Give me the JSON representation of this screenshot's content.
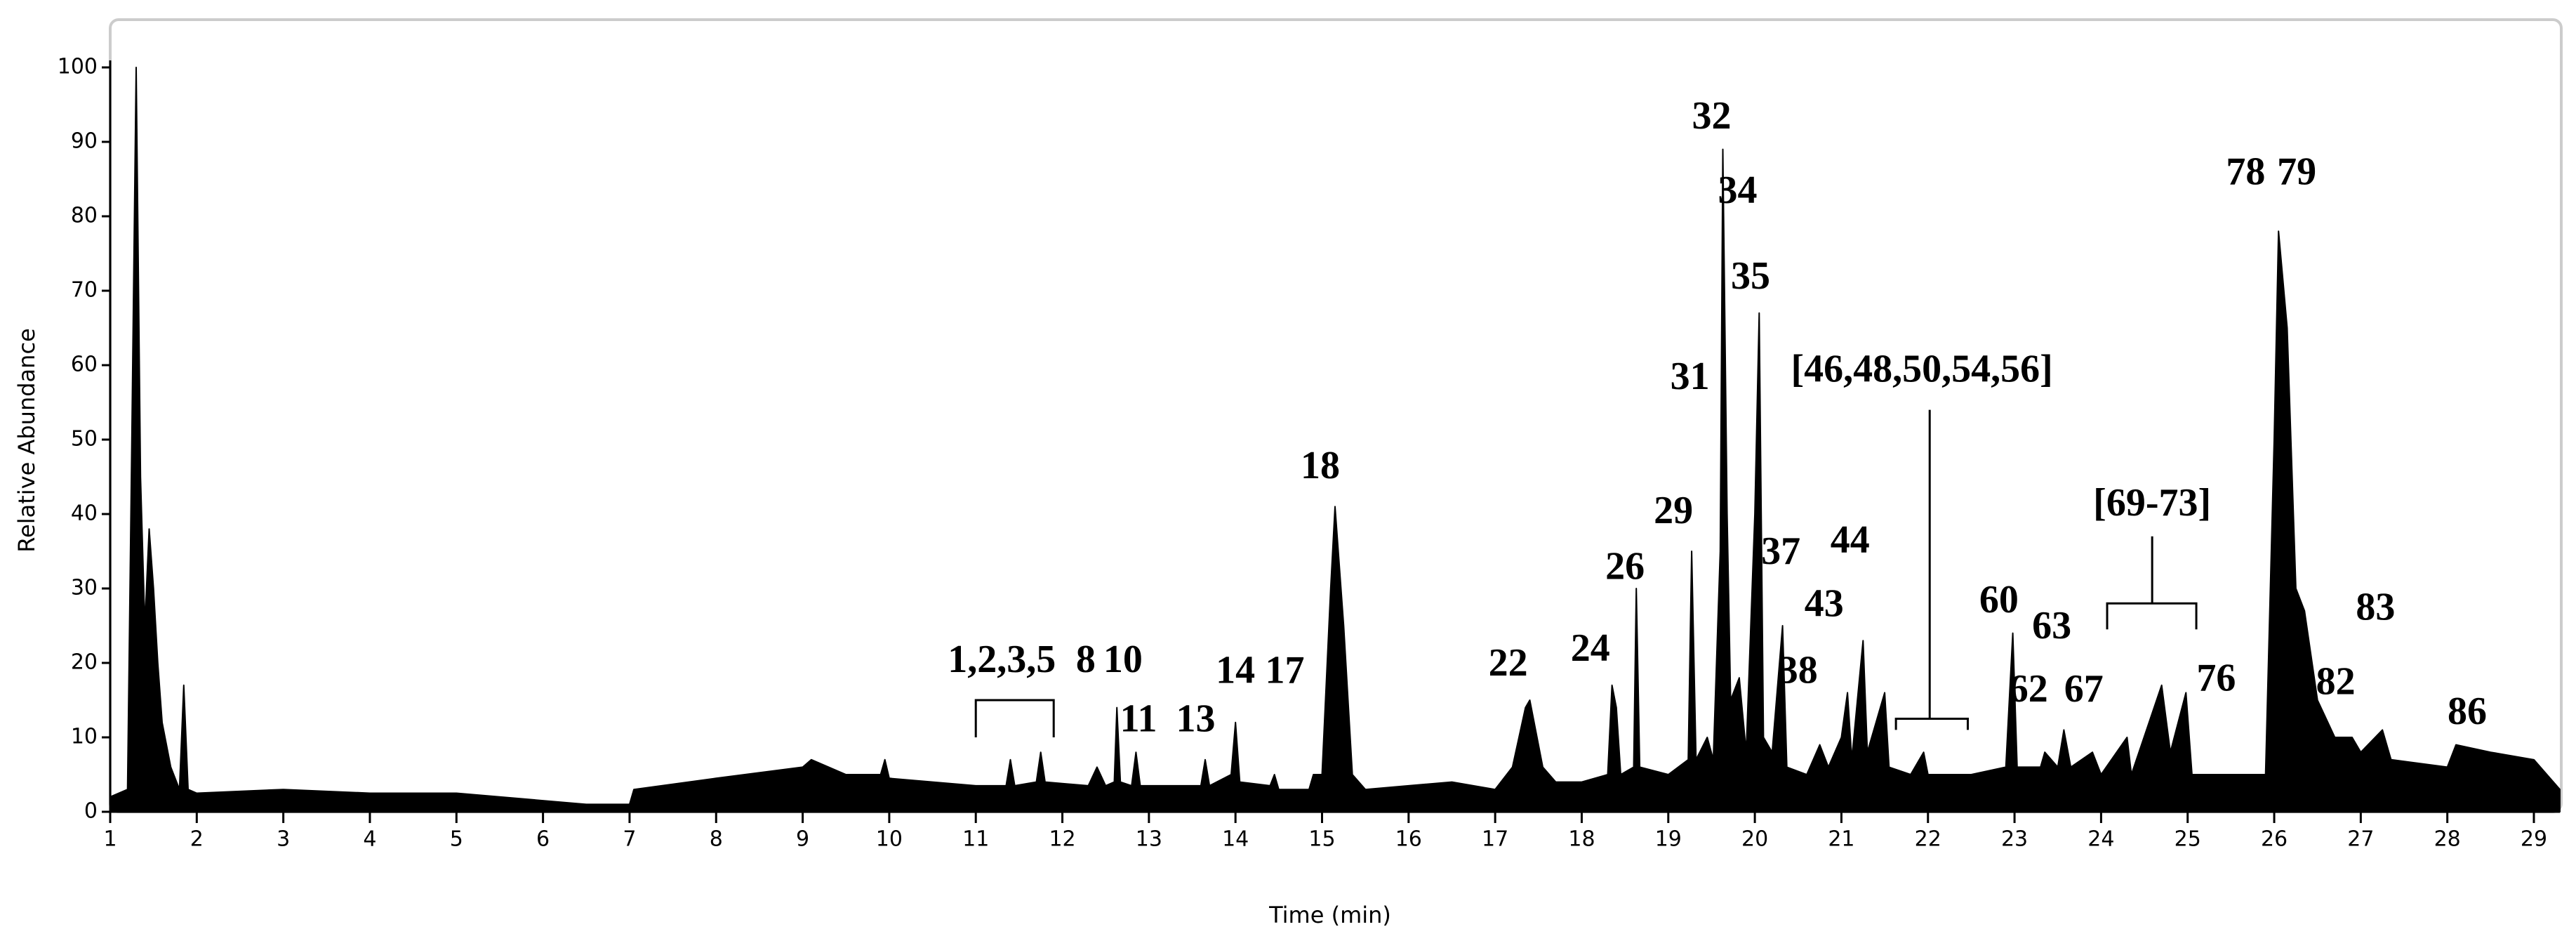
{
  "chart_data": {
    "type": "area",
    "xlabel": "Time (min)",
    "ylabel": "Relative Abundance",
    "color": "#000000",
    "xlim": [
      1,
      29.3
    ],
    "ylim": [
      0,
      100
    ],
    "xticks": [
      1,
      2,
      3,
      4,
      5,
      6,
      7,
      8,
      9,
      10,
      11,
      12,
      13,
      14,
      15,
      16,
      17,
      18,
      19,
      20,
      21,
      22,
      23,
      24,
      25,
      26,
      27,
      28,
      29
    ],
    "yticks": [
      0,
      10,
      20,
      30,
      40,
      50,
      60,
      70,
      80,
      90,
      100
    ],
    "x": [
      1.0,
      1.2,
      1.25,
      1.3,
      1.35,
      1.4,
      1.45,
      1.5,
      1.55,
      1.6,
      1.7,
      1.8,
      1.85,
      1.9,
      2.0,
      3,
      4,
      5,
      6,
      6.5,
      7.0,
      7.05,
      8,
      9,
      9.1,
      9.5,
      9.9,
      9.95,
      10,
      11,
      11.35,
      11.4,
      11.45,
      11.7,
      11.75,
      11.8,
      12.3,
      12.4,
      12.5,
      12.6,
      12.63,
      12.67,
      12.8,
      12.85,
      12.9,
      13.6,
      13.65,
      13.7,
      13.95,
      14.0,
      14.05,
      14.4,
      14.45,
      14.5,
      14.85,
      14.9,
      15.0,
      15.1,
      15.15,
      15.25,
      15.35,
      15.5,
      16,
      16.5,
      17,
      17.2,
      17.35,
      17.4,
      17.55,
      17.7,
      18,
      18.3,
      18.35,
      18.4,
      18.45,
      18.6,
      18.63,
      18.67,
      19,
      19.23,
      19.27,
      19.32,
      19.45,
      19.52,
      19.6,
      19.63,
      19.68,
      19.72,
      19.82,
      19.9,
      20.0,
      20.05,
      20.1,
      20.2,
      20.32,
      20.37,
      20.6,
      20.75,
      20.85,
      21,
      21.07,
      21.12,
      21.25,
      21.3,
      21.5,
      21.55,
      21.8,
      21.95,
      22.0,
      22.5,
      22.9,
      22.98,
      23.03,
      23.3,
      23.35,
      23.5,
      23.57,
      23.65,
      23.9,
      24.0,
      24.3,
      24.35,
      24.7,
      24.8,
      24.98,
      25.05,
      25.5,
      25.9,
      26.0,
      26.05,
      26.15,
      26.25,
      26.35,
      26.5,
      26.7,
      26.9,
      27,
      27.25,
      27.35,
      28,
      28.1,
      28.5,
      29,
      29.3
    ],
    "values": [
      2,
      3,
      50,
      100,
      45,
      25,
      38,
      30,
      20,
      12,
      6,
      3,
      17,
      3,
      2.5,
      3,
      2.5,
      2.5,
      1.5,
      1,
      1,
      3,
      4.5,
      6,
      7,
      5,
      5,
      7,
      4.5,
      3.5,
      3.5,
      7,
      3.5,
      4,
      8,
      4,
      3.5,
      6,
      3.5,
      4,
      14,
      4,
      3.5,
      8,
      3.5,
      3.5,
      7,
      3.5,
      5,
      12,
      4,
      3.5,
      5,
      3,
      3,
      5,
      5,
      30,
      41,
      25,
      5,
      3,
      3.5,
      4,
      3,
      6,
      14,
      15,
      6,
      4,
      4,
      5,
      17,
      14,
      5,
      6,
      30,
      6,
      5,
      7,
      35,
      7,
      10,
      7,
      35,
      89,
      40,
      15,
      18,
      8,
      40,
      67,
      10,
      8,
      25,
      6,
      5,
      9,
      6,
      10,
      16,
      7,
      23,
      8,
      16,
      6,
      5,
      8,
      5,
      5,
      6,
      24,
      6,
      6,
      8,
      6,
      11,
      6,
      8,
      5,
      10,
      5,
      17,
      8,
      16,
      5,
      5,
      5,
      50,
      78,
      65,
      30,
      27,
      15,
      10,
      10,
      8,
      11,
      7,
      6,
      9,
      8,
      7,
      3
    ],
    "annotations": [
      {
        "text": "1,2,3,5",
        "x": 11.3,
        "y": 20,
        "bracket": {
          "from": 11,
          "to": 11.9,
          "y": 15,
          "leg": 10
        }
      },
      {
        "text": "8",
        "x": 12.27,
        "y": 20
      },
      {
        "text": "10",
        "x": 12.7,
        "y": 20
      },
      {
        "text": "11",
        "x": 12.88,
        "y": 12
      },
      {
        "text": "13",
        "x": 13.54,
        "y": 12
      },
      {
        "text": "14",
        "x": 14.0,
        "y": 18.5
      },
      {
        "text": "17",
        "x": 14.57,
        "y": 18.5
      },
      {
        "text": "18",
        "x": 14.98,
        "y": 46
      },
      {
        "text": "22",
        "x": 17.15,
        "y": 19.5
      },
      {
        "text": "24",
        "x": 18.1,
        "y": 21.5
      },
      {
        "text": "26",
        "x": 18.5,
        "y": 32.5
      },
      {
        "text": "29",
        "x": 19.06,
        "y": 40
      },
      {
        "text": "31",
        "x": 19.25,
        "y": 58
      },
      {
        "text": "32",
        "x": 19.5,
        "y": 93
      },
      {
        "text": "34",
        "x": 19.8,
        "y": 83
      },
      {
        "text": "35",
        "x": 19.95,
        "y": 71.5
      },
      {
        "text": "37",
        "x": 20.3,
        "y": 34.5
      },
      {
        "text": "38",
        "x": 20.5,
        "y": 18.5
      },
      {
        "text": "43",
        "x": 20.8,
        "y": 27.5
      },
      {
        "text": "44",
        "x": 21.1,
        "y": 36
      },
      {
        "text": "[46,48,50,54,56]",
        "x": 21.93,
        "y": 59,
        "bracket": {
          "from": 21.63,
          "to": 22.46,
          "y": 12.5,
          "leg": 11,
          "stem_x": 22.02,
          "stem_top": 54
        }
      },
      {
        "text": "60",
        "x": 22.82,
        "y": 28
      },
      {
        "text": "62",
        "x": 23.16,
        "y": 16
      },
      {
        "text": "63",
        "x": 23.43,
        "y": 24.5
      },
      {
        "text": "67",
        "x": 23.8,
        "y": 16
      },
      {
        "text": "[69-73]",
        "x": 24.59,
        "y": 41,
        "bracket": {
          "from": 24.07,
          "to": 25.1,
          "y": 28,
          "leg": 24.5,
          "stem_x": 24.59,
          "stem_top": 37
        }
      },
      {
        "text": "76",
        "x": 25.33,
        "y": 17.5
      },
      {
        "text": "78",
        "x": 25.67,
        "y": 85.5
      },
      {
        "text": "79",
        "x": 26.26,
        "y": 85.5
      },
      {
        "text": "82",
        "x": 26.71,
        "y": 17
      },
      {
        "text": "83",
        "x": 27.17,
        "y": 27
      },
      {
        "text": "86",
        "x": 28.23,
        "y": 13
      }
    ]
  }
}
